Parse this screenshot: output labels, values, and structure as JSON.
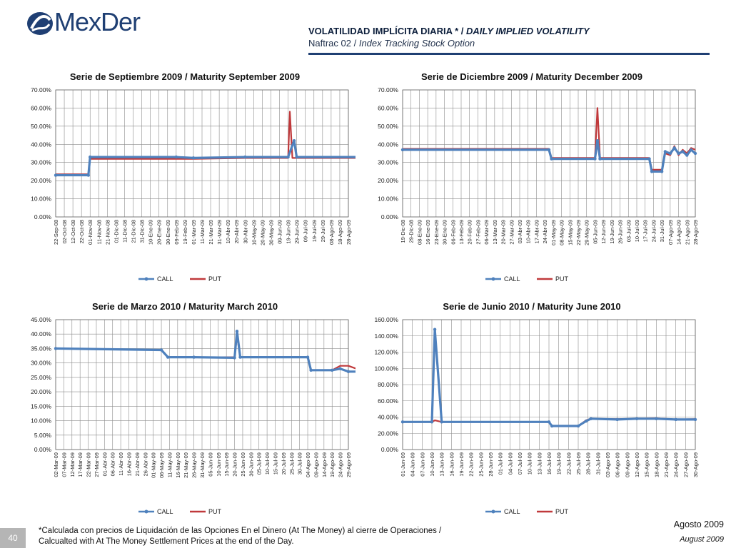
{
  "header": {
    "logo_text": "MexDer",
    "title_es": "VOLATILIDAD IMPLÍCITA DIARIA *",
    "title_sep": " / ",
    "title_en": "DAILY IMPLIED VOLATILITY",
    "subtitle_es": "Naftrac 02",
    "subtitle_sep": " / ",
    "subtitle_en": "Index Tracking Stock Option"
  },
  "colors": {
    "call": "#4f81bd",
    "put": "#c0393b",
    "brand": "#1f3f73",
    "grid": "#8c8c8c"
  },
  "chart_data": [
    {
      "type": "line",
      "title": "Serie de Septiembre 2009 / Maturity September 2009",
      "ylim": [
        0,
        70
      ],
      "yticks": [
        "0.00%",
        "10.00%",
        "20.00%",
        "30.00%",
        "40.00%",
        "50.00%",
        "60.00%",
        "70.00%"
      ],
      "categories": [
        "22-Sep-08",
        "02-Oct-08",
        "12-Oct-08",
        "22-Oct-08",
        "01-Nov-08",
        "11-Nov-08",
        "21-Nov-08",
        "01-Dic-08",
        "11-Dic-08",
        "21-Dic-08",
        "31-Dic-08",
        "10-Ene-09",
        "20-Ene-09",
        "30-Ene-09",
        "09-Feb-09",
        "19-Feb-09",
        "01-Mar-09",
        "11-Mar-09",
        "21-Mar-09",
        "31-Mar-09",
        "10-Abr-09",
        "20-Abr-09",
        "30-Abr-09",
        "10-May-09",
        "20-May-09",
        "30-May-09",
        "09-Jun-09",
        "19-Jun-09",
        "29-Jun-09",
        "09-Jul-09",
        "19-Jul-09",
        "29-Jul-09",
        "08-Ago-09",
        "18-Ago-09",
        "28-Ago-09"
      ],
      "legend": [
        "CALL",
        "PUT"
      ],
      "series": [
        {
          "name": "CALL",
          "values": [
            [
              0,
              23
            ],
            [
              3.8,
              23
            ],
            [
              4,
              33
            ],
            [
              14,
              33
            ],
            [
              16,
              32.5
            ],
            [
              22,
              33
            ],
            [
              27,
              33
            ],
            [
              27.7,
              42
            ],
            [
              28,
              33
            ],
            [
              35,
              33
            ],
            [
              35.3,
              25
            ],
            [
              37.5,
              25
            ],
            [
              38,
              27
            ],
            [
              38.5,
              34
            ],
            [
              39,
              29
            ],
            [
              39.5,
              35
            ],
            [
              40,
              30
            ],
            [
              40.5,
              32
            ],
            [
              41,
              28
            ],
            [
              41.5,
              34
            ],
            [
              42,
              24
            ],
            [
              42.5,
              29
            ]
          ]
        },
        {
          "name": "PUT",
          "values": [
            [
              0,
              23.5
            ],
            [
              3.8,
              23.5
            ],
            [
              4,
              32
            ],
            [
              14,
              32
            ],
            [
              16,
              32
            ],
            [
              22,
              32.5
            ],
            [
              27,
              32.5
            ],
            [
              27.2,
              58
            ],
            [
              27.5,
              32.5
            ],
            [
              35,
              32.5
            ],
            [
              35.3,
              26
            ],
            [
              37.5,
              26
            ],
            [
              38,
              24
            ],
            [
              38.5,
              35
            ],
            [
              39,
              33
            ],
            [
              39.5,
              36
            ],
            [
              40,
              32
            ],
            [
              40.5,
              30
            ],
            [
              41,
              33
            ],
            [
              41.5,
              33
            ],
            [
              42,
              35
            ],
            [
              42.5,
              34
            ]
          ]
        }
      ]
    },
    {
      "type": "line",
      "title": "Serie de Diciembre 2009 / Maturity December 2009",
      "ylim": [
        0,
        70
      ],
      "yticks": [
        "0.00%",
        "10.00%",
        "20.00%",
        "30.00%",
        "40.00%",
        "50.00%",
        "60.00%",
        "70.00%"
      ],
      "categories": [
        "19-Dic-08",
        "29-Dic-08",
        "08-Ene-09",
        "16-Ene-09",
        "23-Ene-09",
        "30-Ene-09",
        "06-Feb-09",
        "13-Feb-09",
        "20-Feb-09",
        "27-Feb-09",
        "06-Mar-09",
        "13-Mar-09",
        "20-Mar-09",
        "27-Mar-09",
        "03-Abr-09",
        "10-Abr-09",
        "17-Abr-09",
        "24-Abr-09",
        "01-May-09",
        "08-May-09",
        "15-May-09",
        "22-May-09",
        "29-May-09",
        "05-Jun-09",
        "12-Jun-09",
        "19-Jun-09",
        "26-Jun-09",
        "03-Jul-09",
        "10-Jul-09",
        "17-Jul-09",
        "24-Jul-09",
        "31-Jul-09",
        "07-Ago-09",
        "14-Ago-09",
        "21-Ago-09",
        "28-Ago-09"
      ],
      "legend": [
        "CALL",
        "PUT"
      ],
      "series": [
        {
          "name": "CALL",
          "values": [
            [
              0,
              37
            ],
            [
              17.5,
              37
            ],
            [
              17.8,
              32
            ],
            [
              23,
              32
            ],
            [
              23.3,
              42
            ],
            [
              23.6,
              32
            ],
            [
              29.5,
              32
            ],
            [
              29.8,
              25
            ],
            [
              31,
              25
            ],
            [
              31.4,
              36
            ],
            [
              32,
              35
            ],
            [
              32.5,
              38
            ],
            [
              33,
              35
            ],
            [
              33.5,
              36
            ],
            [
              34,
              34
            ],
            [
              34.5,
              37
            ],
            [
              35,
              35
            ]
          ]
        },
        {
          "name": "PUT",
          "values": [
            [
              0,
              37.5
            ],
            [
              17.5,
              37.5
            ],
            [
              17.8,
              32.5
            ],
            [
              23,
              32.5
            ],
            [
              23.3,
              60
            ],
            [
              23.6,
              32.5
            ],
            [
              29.5,
              32.5
            ],
            [
              29.8,
              26
            ],
            [
              31,
              26
            ],
            [
              31.4,
              35
            ],
            [
              32,
              34
            ],
            [
              32.5,
              39
            ],
            [
              33,
              34
            ],
            [
              33.5,
              37
            ],
            [
              34,
              35
            ],
            [
              34.5,
              38
            ],
            [
              35,
              37
            ]
          ]
        }
      ]
    },
    {
      "type": "line",
      "title": "Serie de Marzo 2010 / Maturity March 2010",
      "ylim": [
        0,
        45
      ],
      "yticks": [
        "0.00%",
        "5.00%",
        "10.00%",
        "15.00%",
        "20.00%",
        "25.00%",
        "30.00%",
        "35.00%",
        "40.00%",
        "45.00%"
      ],
      "categories": [
        "02-Mar-09",
        "07-Mar-09",
        "12-Mar-09",
        "17-Mar-09",
        "22-Mar-09",
        "27-Mar-09",
        "01-Abr-09",
        "06-Abr-09",
        "11-Abr-09",
        "16-Abr-09",
        "21-Abr-09",
        "26-Abr-09",
        "01-May-09",
        "06-May-09",
        "11-May-09",
        "16-May-09",
        "21-May-09",
        "26-May-09",
        "31-May-09",
        "05-Jun-09",
        "10-Jun-09",
        "15-Jun-09",
        "20-Jun-09",
        "25-Jun-09",
        "30-Jun-09",
        "05-Jul-09",
        "10-Jul-09",
        "15-Jul-09",
        "20-Jul-09",
        "25-Jul-09",
        "30-Jul-09",
        "04-Ago-09",
        "09-Ago-09",
        "14-Ago-09",
        "19-Ago-09",
        "24-Ago-09",
        "29-Ago-09"
      ],
      "legend": [
        "CALL",
        "PUT"
      ],
      "series": [
        {
          "name": "CALL",
          "values": [
            [
              0,
              35
            ],
            [
              13,
              34.5
            ],
            [
              13.8,
              32
            ],
            [
              17,
              32
            ],
            [
              22,
              31.8
            ],
            [
              22.3,
              41
            ],
            [
              22.7,
              32
            ],
            [
              31,
              32
            ],
            [
              31.4,
              27.5
            ],
            [
              34,
              27.5
            ],
            [
              35,
              28
            ],
            [
              36,
              27
            ],
            [
              37,
              27
            ],
            [
              38,
              26.5
            ],
            [
              40,
              26.5
            ]
          ]
        },
        {
          "name": "PUT",
          "values": [
            [
              0,
              35
            ],
            [
              13,
              34.5
            ],
            [
              13.8,
              32
            ],
            [
              17,
              32
            ],
            [
              22,
              32
            ],
            [
              22.3,
              39.5
            ],
            [
              22.7,
              32
            ],
            [
              31,
              32
            ],
            [
              31.4,
              27.5
            ],
            [
              34,
              27.5
            ],
            [
              35,
              29
            ],
            [
              36,
              29
            ],
            [
              37,
              28
            ],
            [
              38,
              29
            ],
            [
              39,
              29
            ],
            [
              40,
              28
            ],
            [
              41,
              28
            ]
          ]
        }
      ]
    },
    {
      "type": "line",
      "title": "Serie de Junio 2010 / Maturity June 2010",
      "ylim": [
        0,
        160
      ],
      "yticks": [
        "0.00%",
        "20.00%",
        "40.00%",
        "60.00%",
        "80.00%",
        "100.00%",
        "120.00%",
        "140.00%",
        "160.00%"
      ],
      "categories": [
        "01-Jun-09",
        "04-Jun-09",
        "07-Jun-09",
        "10-Jun-09",
        "13-Jun-09",
        "16-Jun-09",
        "19-Jun-09",
        "22-Jun-09",
        "25-Jun-09",
        "28-Jun-09",
        "01-Jul-09",
        "04-Jul-09",
        "07-Jul-09",
        "10-Jul-09",
        "13-Jul-09",
        "16-Jul-09",
        "19-Jul-09",
        "22-Jul-09",
        "25-Jul-09",
        "28-Jul-09",
        "31-Jul-09",
        "03-Ago-09",
        "06-Ago-09",
        "09-Ago-09",
        "12-Ago-09",
        "15-Ago-09",
        "18-Ago-09",
        "21-Ago-09",
        "24-Ago-09",
        "27-Ago-09",
        "30-Ago-09"
      ],
      "legend": [
        "CALL",
        "PUT"
      ],
      "series": [
        {
          "name": "CALL",
          "values": [
            [
              0,
              34
            ],
            [
              3,
              34
            ],
            [
              3.3,
              148
            ],
            [
              4,
              34
            ],
            [
              15,
              34
            ],
            [
              15.3,
              29
            ],
            [
              18,
              29
            ],
            [
              18.8,
              35
            ],
            [
              19.3,
              38
            ],
            [
              22,
              37
            ],
            [
              24,
              38
            ],
            [
              26,
              38
            ],
            [
              28,
              37
            ],
            [
              30,
              37
            ]
          ]
        },
        {
          "name": "PUT",
          "values": [
            [
              0,
              34
            ],
            [
              3,
              34
            ],
            [
              3.3,
              36
            ],
            [
              4,
              34
            ],
            [
              15,
              34
            ],
            [
              15.3,
              29
            ],
            [
              18,
              29
            ],
            [
              18.8,
              36
            ],
            [
              19.3,
              38
            ],
            [
              22,
              37.5
            ],
            [
              24,
              38
            ],
            [
              26,
              38.5
            ],
            [
              28,
              37
            ],
            [
              30,
              37.5
            ]
          ]
        }
      ]
    }
  ],
  "footnote": {
    "line1": "*Calculada con precios de Liquidación de las Opciones En el Dinero (At The Money) al cierre de Operaciones /",
    "line2": "Calcualted with At The Money Settlement Prices at the end of the Day."
  },
  "page_number": "40",
  "date_es": "Agosto 2009",
  "date_en": "August 2009"
}
